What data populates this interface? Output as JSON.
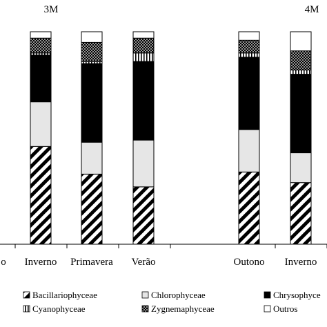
{
  "chart_data": {
    "type": "bar",
    "stacked": true,
    "normalized": true,
    "ylim": [
      0,
      100
    ],
    "groups": [
      {
        "label": "3M",
        "categories": [
          "o",
          "Inverno",
          "Primavera",
          "Verão"
        ]
      },
      {
        "label": "4M",
        "categories": [
          "Outono",
          "Inverno"
        ]
      }
    ],
    "categories": [
      "o",
      "Inverno",
      "Primavera",
      "Verão",
      "Outono",
      "Inverno"
    ],
    "series": [
      {
        "name": "Bacillariophyceae",
        "color": "#ffffff",
        "pattern": "diagonal-hatch",
        "values": [
          null,
          46,
          33,
          27,
          34,
          29
        ]
      },
      {
        "name": "Chlorophyceae",
        "color": "#e6e6e6",
        "pattern": "solid-light-gray",
        "values": [
          null,
          21,
          15,
          22,
          20,
          14
        ]
      },
      {
        "name": "Chrysophyceae",
        "color": "#000000",
        "pattern": "solid-black",
        "values": [
          null,
          22,
          37,
          37,
          34,
          37
        ]
      },
      {
        "name": "Cyanophyceae",
        "color": "#ffffff",
        "pattern": "vertical-lines",
        "values": [
          null,
          1,
          1,
          4,
          2,
          2
        ]
      },
      {
        "name": "Zygnemaphyceae",
        "color": "#ffffff",
        "pattern": "dots",
        "values": [
          null,
          7,
          9,
          7,
          6,
          9
        ]
      },
      {
        "name": "Outros",
        "color": "#ffffff",
        "pattern": "blank",
        "values": [
          null,
          3,
          5,
          3,
          4,
          9
        ]
      }
    ],
    "legend": {
      "placement": "bottom",
      "entries": [
        "Bacillariophyceae",
        "Chlorophyceae",
        "Chrysophyce",
        "Cyanophyceae",
        "Zygnemaphyceae",
        "Outros"
      ]
    }
  }
}
